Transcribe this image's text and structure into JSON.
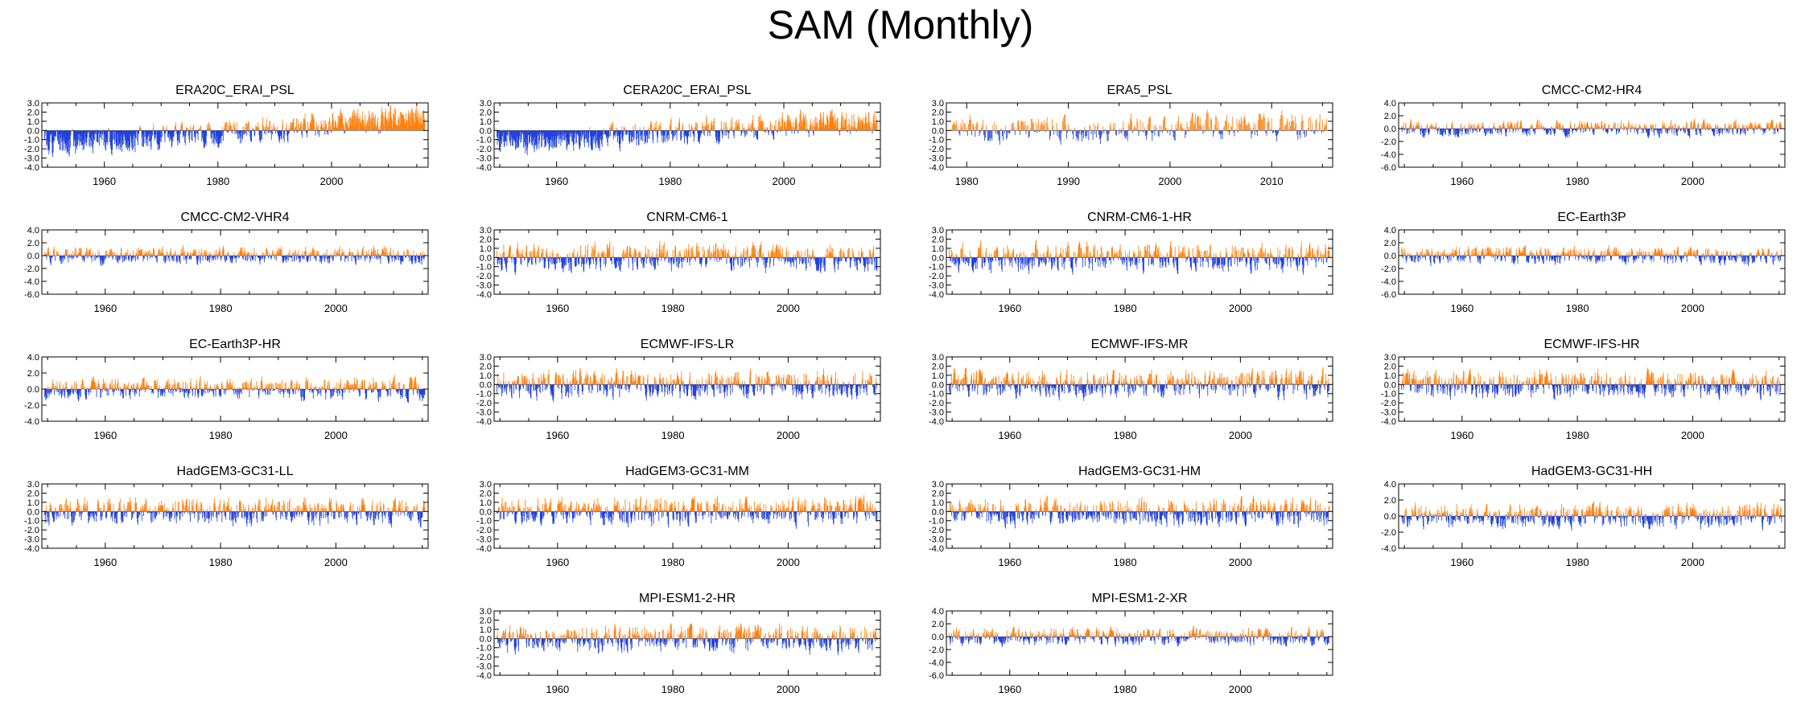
{
  "title": "SAM (Monthly)",
  "colors": {
    "positive": "#ff7f0e",
    "negative": "#1f3fdc",
    "axis": "#000000"
  },
  "chart_data": [
    {
      "type": "bar",
      "title": "ERA20C_ERAI_PSL",
      "x_range": [
        1949,
        2017
      ],
      "ylim": [
        -4,
        3
      ],
      "yticks": [
        3,
        2,
        1,
        0,
        -1,
        -2,
        -3,
        -4
      ],
      "yticklabels": [
        "3.0",
        "2.0",
        "1.0",
        "0.0",
        "-1.0",
        "-2.0",
        "-3.0",
        "-4.0"
      ],
      "xticks": [
        1960,
        1980,
        2000
      ],
      "seed": 1,
      "trend": 0.025,
      "amplitude": 1.0
    },
    {
      "type": "bar",
      "title": "CERA20C_ERAI_PSL",
      "x_range": [
        1949,
        2017
      ],
      "ylim": [
        -4,
        3
      ],
      "yticks": [
        3,
        2,
        1,
        0,
        -1,
        -2,
        -3,
        -4
      ],
      "yticklabels": [
        "3.0",
        "2.0",
        "1.0",
        "0.0",
        "-1.0",
        "-2.0",
        "-3.0",
        "-4.0"
      ],
      "xticks": [
        1960,
        1980,
        2000
      ],
      "seed": 2,
      "trend": 0.022,
      "amplitude": 1.0
    },
    {
      "type": "bar",
      "title": "ERA5_PSL",
      "x_range": [
        1978,
        2016
      ],
      "ylim": [
        -4,
        3
      ],
      "yticks": [
        3,
        2,
        1,
        0,
        -1,
        -2,
        -3,
        -4
      ],
      "yticklabels": [
        "3.0",
        "2.0",
        "1.0",
        "0.0",
        "-1.0",
        "-2.0",
        "-3.0",
        "-4.0"
      ],
      "xticks": [
        1980,
        1990,
        2000,
        2010
      ],
      "seed": 3,
      "trend": 0.01,
      "amplitude": 1.1
    },
    {
      "type": "bar",
      "title": "CMCC-CM2-HR4",
      "x_range": [
        1949,
        2016
      ],
      "ylim": [
        -6,
        4
      ],
      "yticks": [
        4,
        2,
        0,
        -2,
        -4,
        -6
      ],
      "yticklabels": [
        "4.0",
        "2.0",
        "0.0",
        "-2.0",
        "-4.0",
        "-6.0"
      ],
      "xticks": [
        1960,
        1980,
        2000
      ],
      "seed": 4,
      "trend": 0.0,
      "amplitude": 0.9
    },
    {
      "type": "bar",
      "title": "CMCC-CM2-VHR4",
      "x_range": [
        1949,
        2016
      ],
      "ylim": [
        -6,
        4
      ],
      "yticks": [
        4,
        2,
        0,
        -2,
        -4,
        -6
      ],
      "yticklabels": [
        "4.0",
        "2.0",
        "0.0",
        "-2.0",
        "-4.0",
        "-6.0"
      ],
      "xticks": [
        1960,
        1980,
        2000
      ],
      "seed": 5,
      "trend": 0.0,
      "amplitude": 1.0
    },
    {
      "type": "bar",
      "title": "CNRM-CM6-1",
      "x_range": [
        1949,
        2016
      ],
      "ylim": [
        -4,
        3
      ],
      "yticks": [
        3,
        2,
        1,
        0,
        -1,
        -2,
        -3,
        -4
      ],
      "yticklabels": [
        "3.0",
        "2.0",
        "1.0",
        "0.0",
        "-1.0",
        "-2.0",
        "-3.0",
        "-4.0"
      ],
      "xticks": [
        1960,
        1980,
        2000
      ],
      "seed": 6,
      "trend": 0.0,
      "amplitude": 1.1
    },
    {
      "type": "bar",
      "title": "CNRM-CM6-1-HR",
      "x_range": [
        1949,
        2016
      ],
      "ylim": [
        -4,
        3
      ],
      "yticks": [
        3,
        2,
        1,
        0,
        -1,
        -2,
        -3,
        -4
      ],
      "yticklabels": [
        "3.0",
        "2.0",
        "1.0",
        "0.0",
        "-1.0",
        "-2.0",
        "-3.0",
        "-4.0"
      ],
      "xticks": [
        1960,
        1980,
        2000
      ],
      "seed": 7,
      "trend": 0.0,
      "amplitude": 1.1
    },
    {
      "type": "bar",
      "title": "EC-Earth3P",
      "x_range": [
        1949,
        2016
      ],
      "ylim": [
        -6,
        4
      ],
      "yticks": [
        4,
        2,
        0,
        -2,
        -4,
        -6
      ],
      "yticklabels": [
        "4.0",
        "2.0",
        "0.0",
        "-2.0",
        "-4.0",
        "-6.0"
      ],
      "xticks": [
        1960,
        1980,
        2000
      ],
      "seed": 8,
      "trend": 0.0,
      "amplitude": 1.0
    },
    {
      "type": "bar",
      "title": "EC-Earth3P-HR",
      "x_range": [
        1949,
        2016
      ],
      "ylim": [
        -4,
        4
      ],
      "yticks": [
        4,
        2,
        0,
        -2,
        -4
      ],
      "yticklabels": [
        "4.0",
        "2.0",
        "0.0",
        "-2.0",
        "-4.0"
      ],
      "xticks": [
        1960,
        1980,
        2000
      ],
      "seed": 9,
      "trend": 0.0,
      "amplitude": 1.0
    },
    {
      "type": "bar",
      "title": "ECMWF-IFS-LR",
      "x_range": [
        1949,
        2016
      ],
      "ylim": [
        -4,
        3
      ],
      "yticks": [
        3,
        2,
        1,
        0,
        -1,
        -2,
        -3,
        -4
      ],
      "yticklabels": [
        "3.0",
        "2.0",
        "1.0",
        "0.0",
        "-1.0",
        "-2.0",
        "-3.0",
        "-4.0"
      ],
      "xticks": [
        1960,
        1980,
        2000
      ],
      "seed": 10,
      "trend": 0.0,
      "amplitude": 1.1
    },
    {
      "type": "bar",
      "title": "ECMWF-IFS-MR",
      "x_range": [
        1949,
        2016
      ],
      "ylim": [
        -4,
        3
      ],
      "yticks": [
        3,
        2,
        1,
        0,
        -1,
        -2,
        -3,
        -4
      ],
      "yticklabels": [
        "3.0",
        "2.0",
        "1.0",
        "0.0",
        "-1.0",
        "-2.0",
        "-3.0",
        "-4.0"
      ],
      "xticks": [
        1960,
        1980,
        2000
      ],
      "seed": 11,
      "trend": 0.0,
      "amplitude": 1.1
    },
    {
      "type": "bar",
      "title": "ECMWF-IFS-HR",
      "x_range": [
        1949,
        2016
      ],
      "ylim": [
        -4,
        3
      ],
      "yticks": [
        3,
        2,
        1,
        0,
        -1,
        -2,
        -3,
        -4
      ],
      "yticklabels": [
        "3.0",
        "2.0",
        "1.0",
        "0.0",
        "-1.0",
        "-2.0",
        "-3.0",
        "-4.0"
      ],
      "xticks": [
        1960,
        1980,
        2000
      ],
      "seed": 12,
      "trend": 0.0,
      "amplitude": 1.1
    },
    {
      "type": "bar",
      "title": "HadGEM3-GC31-LL",
      "x_range": [
        1949,
        2016
      ],
      "ylim": [
        -4,
        3
      ],
      "yticks": [
        3,
        2,
        1,
        0,
        -1,
        -2,
        -3,
        -4
      ],
      "yticklabels": [
        "3.0",
        "2.0",
        "1.0",
        "0.0",
        "-1.0",
        "-2.0",
        "-3.0",
        "-4.0"
      ],
      "xticks": [
        1960,
        1980,
        2000
      ],
      "seed": 13,
      "trend": 0.0,
      "amplitude": 1.1
    },
    {
      "type": "bar",
      "title": "HadGEM3-GC31-MM",
      "x_range": [
        1949,
        2016
      ],
      "ylim": [
        -4,
        3
      ],
      "yticks": [
        3,
        2,
        1,
        0,
        -1,
        -2,
        -3,
        -4
      ],
      "yticklabels": [
        "3.0",
        "2.0",
        "1.0",
        "0.0",
        "-1.0",
        "-2.0",
        "-3.0",
        "-4.0"
      ],
      "xticks": [
        1960,
        1980,
        2000
      ],
      "seed": 14,
      "trend": 0.0,
      "amplitude": 1.1
    },
    {
      "type": "bar",
      "title": "HadGEM3-GC31-HM",
      "x_range": [
        1949,
        2016
      ],
      "ylim": [
        -4,
        3
      ],
      "yticks": [
        3,
        2,
        1,
        0,
        -1,
        -2,
        -3,
        -4
      ],
      "yticklabels": [
        "3.0",
        "2.0",
        "1.0",
        "0.0",
        "-1.0",
        "-2.0",
        "-3.0",
        "-4.0"
      ],
      "xticks": [
        1960,
        1980,
        2000
      ],
      "seed": 15,
      "trend": 0.0,
      "amplitude": 1.1
    },
    {
      "type": "bar",
      "title": "HadGEM3-GC31-HH",
      "x_range": [
        1949,
        2016
      ],
      "ylim": [
        -4,
        4
      ],
      "yticks": [
        4,
        2,
        0,
        -2,
        -4
      ],
      "yticklabels": [
        "4.0",
        "2.0",
        "0.0",
        "-2.0",
        "-4.0"
      ],
      "xticks": [
        1960,
        1980,
        2000
      ],
      "seed": 16,
      "trend": 0.0,
      "amplitude": 1.1
    },
    {
      "type": "bar",
      "title": "MPI-ESM1-2-HR",
      "x_range": [
        1949,
        2016
      ],
      "ylim": [
        -4,
        3
      ],
      "yticks": [
        3,
        2,
        1,
        0,
        -1,
        -2,
        -3,
        -4
      ],
      "yticklabels": [
        "3.0",
        "2.0",
        "1.0",
        "0.0",
        "-1.0",
        "-2.0",
        "-3.0",
        "-4.0"
      ],
      "xticks": [
        1960,
        1980,
        2000
      ],
      "seed": 17,
      "trend": 0.0,
      "amplitude": 1.1
    },
    {
      "type": "bar",
      "title": "MPI-ESM1-2-XR",
      "x_range": [
        1949,
        2016
      ],
      "ylim": [
        -6,
        4
      ],
      "yticks": [
        4,
        2,
        0,
        -2,
        -4,
        -6
      ],
      "yticklabels": [
        "4.0",
        "2.0",
        "0.0",
        "-2.0",
        "-4.0",
        "-6.0"
      ],
      "xticks": [
        1960,
        1980,
        2000
      ],
      "seed": 18,
      "trend": 0.0,
      "amplitude": 1.0
    }
  ]
}
